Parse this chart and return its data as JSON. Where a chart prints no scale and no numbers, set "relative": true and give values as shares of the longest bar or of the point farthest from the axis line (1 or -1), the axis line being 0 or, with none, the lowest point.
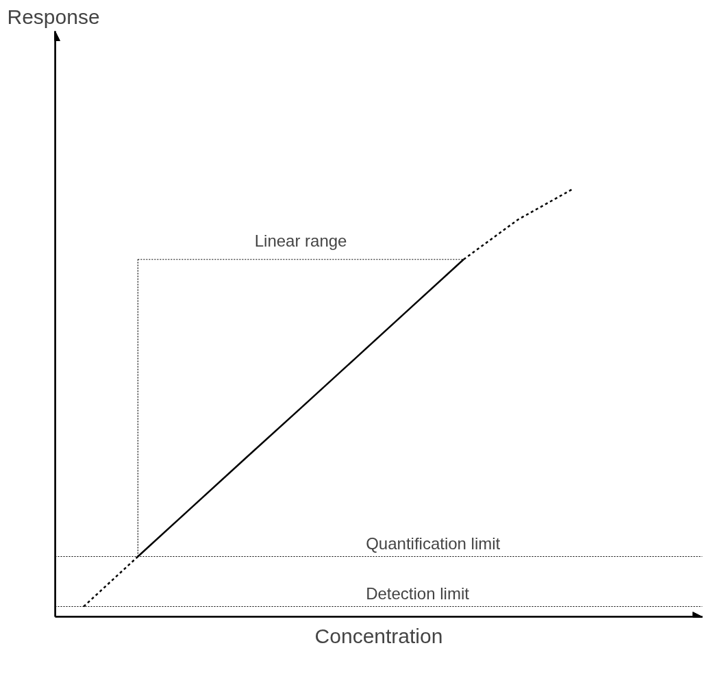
{
  "chart_data": {
    "type": "line",
    "relative": true,
    "xlabel": "Concentration",
    "grid": false,
    "tick_labels": false,
    "categories": [
      null,
      null,
      null,
      null,
      null,
      null,
      null,
      null,
      null,
      null
    ],
    "series": [
      {
        "color": "#000000",
        "line_style": "dashed",
        "values": [
          0.024,
          0.141,
          null,
          null,
          null,
          null,
          null,
          null,
          null,
          null
        ]
      },
      {
        "color": "#000000",
        "line_style": "solid",
        "values": [
          null,
          0.141,
          0.257,
          0.373,
          0.488,
          0.604,
          0.72,
          0.836,
          null,
          null
        ]
      },
      {
        "color": "#000000",
        "line_style": "dashed",
        "values": [
          null,
          null,
          null,
          null,
          null,
          null,
          null,
          0.836,
          0.929,
          1.0
        ]
      },
      {
        "color": "#000000",
        "line_style": "dotted",
        "values": [
          null,
          0.836,
          0.836,
          0.836,
          0.836,
          0.836,
          0.836,
          0.836,
          null,
          null
        ]
      }
    ],
    "ref_lines": [
      {
        "axis": "y",
        "value": 0.141,
        "label": "Quantification limit",
        "line_style": "dotted",
        "color": "#000000"
      },
      {
        "axis": "y",
        "value": 0.024,
        "label": "Detection limit",
        "line_style": "dotted",
        "color": "#000000"
      }
    ],
    "annotations": [
      "Linear range",
      "Response"
    ]
  }
}
